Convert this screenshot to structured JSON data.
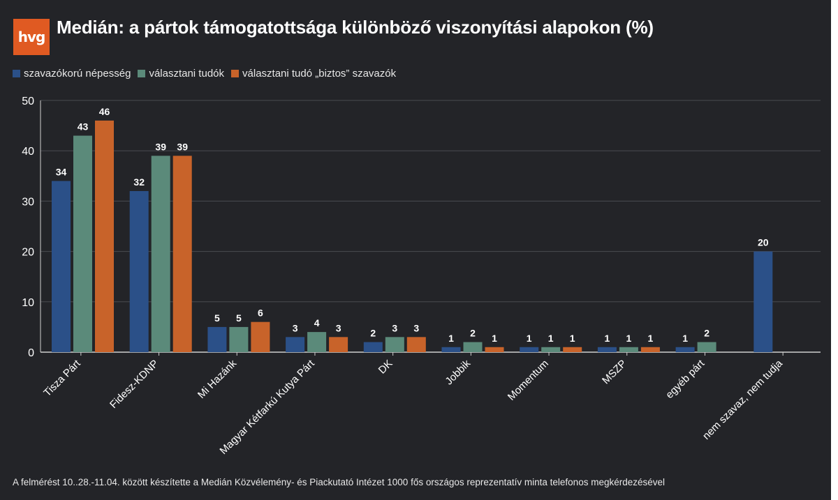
{
  "header": {
    "logo_text": "hvg",
    "title": "Medián: a pártok támogatottsága különböző viszonyítási alapokon (%)"
  },
  "colors": {
    "background": "#232428",
    "series": [
      "#2b5088",
      "#5b8a7a",
      "#c8632a"
    ],
    "grid": "#4a4b50",
    "text": "#ffffff"
  },
  "chart_data": {
    "type": "bar",
    "title": "Medián: a pártok támogatottsága különböző viszonyítási alapokon (%)",
    "xlabel": "",
    "ylabel": "",
    "ylim": [
      0,
      50
    ],
    "yticks": [
      0,
      10,
      20,
      30,
      40,
      50
    ],
    "grid": true,
    "legend_position": "top-left",
    "categories": [
      "Tisza Párt",
      "Fidesz-KDNP",
      "Mi Hazánk",
      "Magyar Kétfarkú Kutya Párt",
      "DK",
      "Jobbik",
      "Momentum",
      "MSZP",
      "egyéb párt",
      "nem szavaz, nem tudja"
    ],
    "series": [
      {
        "name": "szavazókorú népesség",
        "values": [
          34,
          32,
          5,
          3,
          2,
          1,
          1,
          1,
          1,
          20
        ]
      },
      {
        "name": "választani tudók",
        "values": [
          43,
          39,
          5,
          4,
          3,
          2,
          1,
          1,
          2,
          null
        ]
      },
      {
        "name": "választani tudó „biztos” szavazók",
        "values": [
          46,
          39,
          6,
          3,
          3,
          1,
          1,
          1,
          null,
          null
        ]
      }
    ]
  },
  "footnote": "A felmérést 10..28.-11.04. között készítette a Medián Közvélemény- és Piackutató Intézet 1000 fős országos reprezentatív minta telefonos megkérdezésével"
}
